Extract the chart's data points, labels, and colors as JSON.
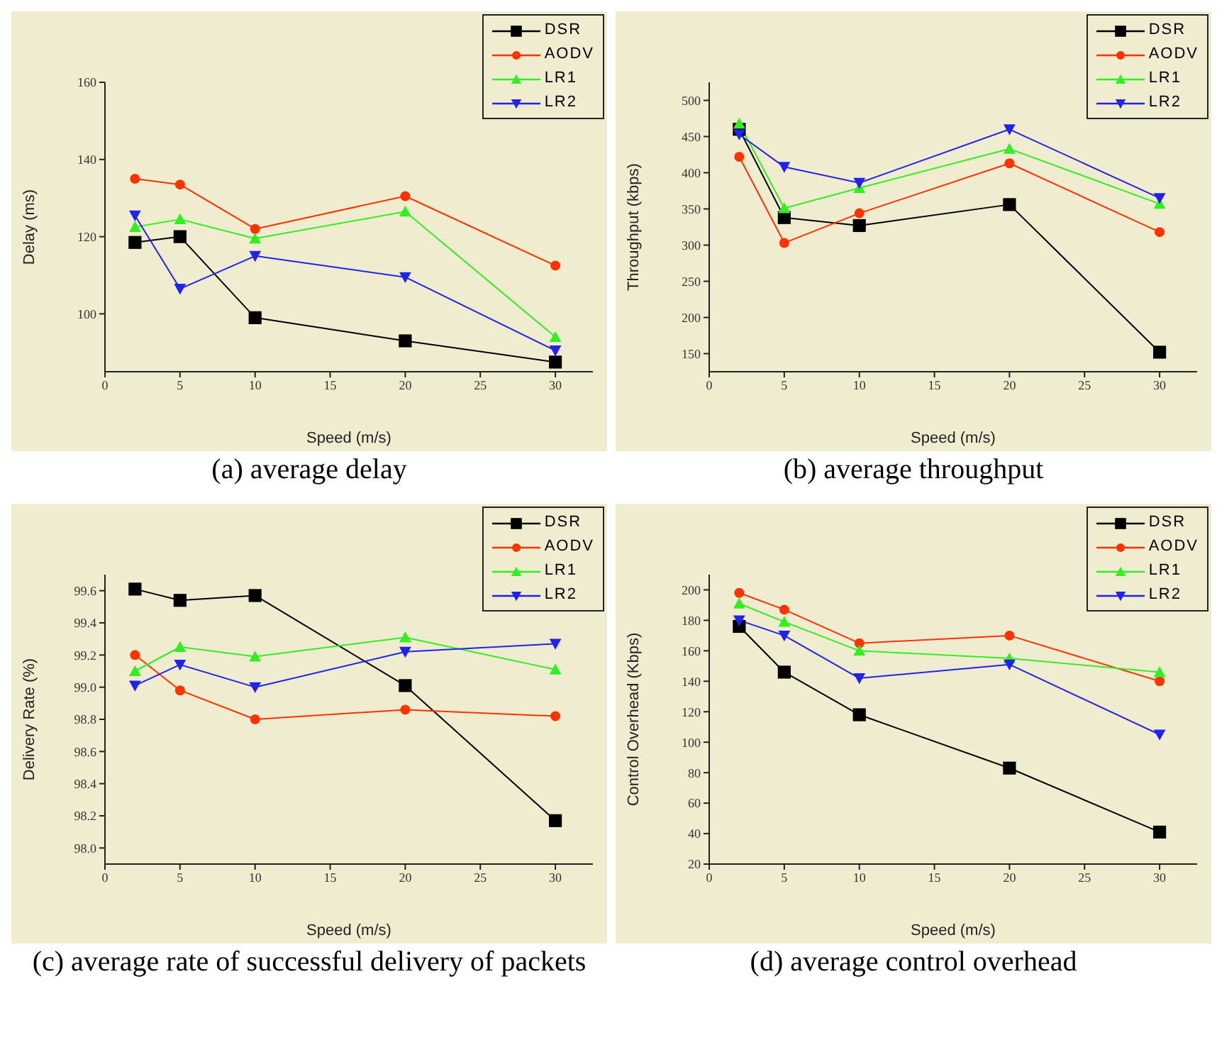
{
  "chart_data": [
    {
      "type": "line",
      "title": "(a) average delay",
      "xlabel": "Speed (m/s)",
      "ylabel": "Delay (ms)",
      "x": [
        2,
        5,
        10,
        20,
        30
      ],
      "xlim": [
        0,
        32.5
      ],
      "xticks": [
        0,
        5,
        10,
        15,
        20,
        25,
        30
      ],
      "ylim": [
        85,
        160
      ],
      "yticks": [
        100,
        120,
        140,
        160
      ],
      "grid": false,
      "legend": "top right",
      "series": [
        {
          "name": "DSR",
          "color": "#000000",
          "marker": "square",
          "values": [
            118.5,
            120,
            99,
            93,
            87.5
          ]
        },
        {
          "name": "AODV",
          "color": "#ff3300",
          "marker": "circle",
          "values": [
            135,
            133.5,
            122,
            130.5,
            112.5
          ]
        },
        {
          "name": "LR1",
          "color": "#33ee22",
          "marker": "triangle",
          "values": [
            122.5,
            124.5,
            119.5,
            126.5,
            94
          ]
        },
        {
          "name": "LR2",
          "color": "#2222ee",
          "marker": "triangle-down",
          "values": [
            125.5,
            106.5,
            115,
            109.5,
            90.5
          ]
        }
      ]
    },
    {
      "type": "line",
      "title": "(b) average throughput",
      "xlabel": "Speed (m/s)",
      "ylabel": "Throughput (kbps)",
      "x": [
        2,
        5,
        10,
        20,
        30
      ],
      "xlim": [
        0,
        32.5
      ],
      "xticks": [
        0,
        5,
        10,
        15,
        20,
        25,
        30
      ],
      "ylim": [
        125,
        525
      ],
      "yticks": [
        150,
        200,
        250,
        300,
        350,
        400,
        450,
        500
      ],
      "grid": false,
      "legend": "top right",
      "series": [
        {
          "name": "DSR",
          "color": "#000000",
          "marker": "square",
          "values": [
            460,
            338,
            327,
            356,
            152
          ]
        },
        {
          "name": "AODV",
          "color": "#ff3300",
          "marker": "circle",
          "values": [
            422,
            303,
            344,
            413,
            318
          ]
        },
        {
          "name": "LR1",
          "color": "#33ee22",
          "marker": "triangle",
          "values": [
            468,
            351,
            379,
            433,
            357
          ]
        },
        {
          "name": "LR2",
          "color": "#2222ee",
          "marker": "triangle-down",
          "values": [
            453,
            408,
            386,
            460,
            365
          ]
        }
      ]
    },
    {
      "type": "line",
      "title": "(c) average rate of successful delivery of packets",
      "xlabel": "Speed (m/s)",
      "ylabel": "Delivery Rate (%)",
      "x": [
        2,
        5,
        10,
        20,
        30
      ],
      "xlim": [
        0,
        32.5
      ],
      "xticks": [
        0,
        5,
        10,
        15,
        20,
        25,
        30
      ],
      "ylim": [
        97.9,
        99.7
      ],
      "yticks": [
        {
          "value": 98,
          "label": "98.0"
        },
        {
          "value": 98.2,
          "label": "98.2"
        },
        {
          "value": 98.4,
          "label": "98.4"
        },
        {
          "value": 98.6,
          "label": "98.6"
        },
        {
          "value": 98.8,
          "label": "98.8"
        },
        {
          "value": 99,
          "label": "99.0"
        },
        {
          "value": 99.2,
          "label": "99.2"
        },
        {
          "value": 99.4,
          "label": "99.4"
        },
        {
          "value": 99.6,
          "label": "99.6"
        }
      ],
      "grid": false,
      "legend": "top right",
      "series": [
        {
          "name": "DSR",
          "color": "#000000",
          "marker": "square",
          "values": [
            99.61,
            99.54,
            99.57,
            99.01,
            98.17
          ]
        },
        {
          "name": "AODV",
          "color": "#ff3300",
          "marker": "circle",
          "values": [
            99.2,
            98.98,
            98.8,
            98.86,
            98.82
          ]
        },
        {
          "name": "LR1",
          "color": "#33ee22",
          "marker": "triangle",
          "values": [
            99.1,
            99.25,
            99.19,
            99.31,
            99.11
          ]
        },
        {
          "name": "LR2",
          "color": "#2222ee",
          "marker": "triangle-down",
          "values": [
            99.01,
            99.14,
            99.0,
            99.22,
            99.27
          ]
        }
      ]
    },
    {
      "type": "line",
      "title": "(d) average control overhead",
      "xlabel": "Speed (m/s)",
      "ylabel": "Control Overhead (Kbps)",
      "x": [
        2,
        5,
        10,
        20,
        30
      ],
      "xlim": [
        0,
        32.5
      ],
      "xticks": [
        0,
        5,
        10,
        15,
        20,
        25,
        30
      ],
      "ylim": [
        20,
        210
      ],
      "yticks": [
        20,
        40,
        60,
        80,
        100,
        120,
        140,
        160,
        180,
        200
      ],
      "grid": false,
      "legend": "top right",
      "series": [
        {
          "name": "DSR",
          "color": "#000000",
          "marker": "square",
          "values": [
            176,
            146,
            118,
            83,
            41
          ]
        },
        {
          "name": "AODV",
          "color": "#ff3300",
          "marker": "circle",
          "values": [
            198,
            187,
            165,
            170,
            140
          ]
        },
        {
          "name": "LR1",
          "color": "#33ee22",
          "marker": "triangle",
          "values": [
            191,
            179,
            160,
            155,
            146
          ]
        },
        {
          "name": "LR2",
          "color": "#2222ee",
          "marker": "triangle-down",
          "values": [
            180,
            170,
            142,
            151,
            105
          ]
        }
      ]
    }
  ]
}
